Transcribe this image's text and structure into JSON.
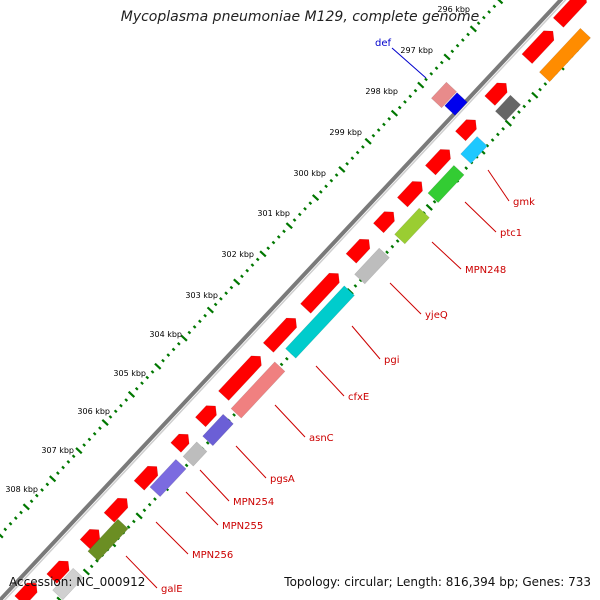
{
  "title": "Mycoplasma pneumoniae M129, complete genome",
  "footer": {
    "accession": "Accession: NC_000912",
    "summary": "Topology: circular; Length: 816,394 bp; Genes: 733"
  },
  "ticks": [
    "296 kbp",
    "297 kbp",
    "298 kbp",
    "299 kbp",
    "300 kbp",
    "301 kbp",
    "302 kbp",
    "303 kbp",
    "304 kbp",
    "305 kbp",
    "306 kbp",
    "307 kbp",
    "308 kbp"
  ],
  "gene_labels": [
    {
      "name": "def",
      "color": "#0000cc"
    },
    {
      "name": "gmk",
      "color": "#cc0000"
    },
    {
      "name": "ptc1",
      "color": "#cc0000"
    },
    {
      "name": "MPN248",
      "color": "#cc0000"
    },
    {
      "name": "yjeQ",
      "color": "#cc0000"
    },
    {
      "name": "pgi",
      "color": "#cc0000"
    },
    {
      "name": "cfxE",
      "color": "#cc0000"
    },
    {
      "name": "asnC",
      "color": "#cc0000"
    },
    {
      "name": "pgsA",
      "color": "#cc0000"
    },
    {
      "name": "MPN254",
      "color": "#cc0000"
    },
    {
      "name": "MPN255",
      "color": "#cc0000"
    },
    {
      "name": "MPN256",
      "color": "#cc0000"
    },
    {
      "name": "galE",
      "color": "#cc0000"
    }
  ],
  "colors": {
    "cds": "#ff0000",
    "backbone": "#888888",
    "tick_outer": "#007700",
    "tick_inner": "#007700"
  }
}
